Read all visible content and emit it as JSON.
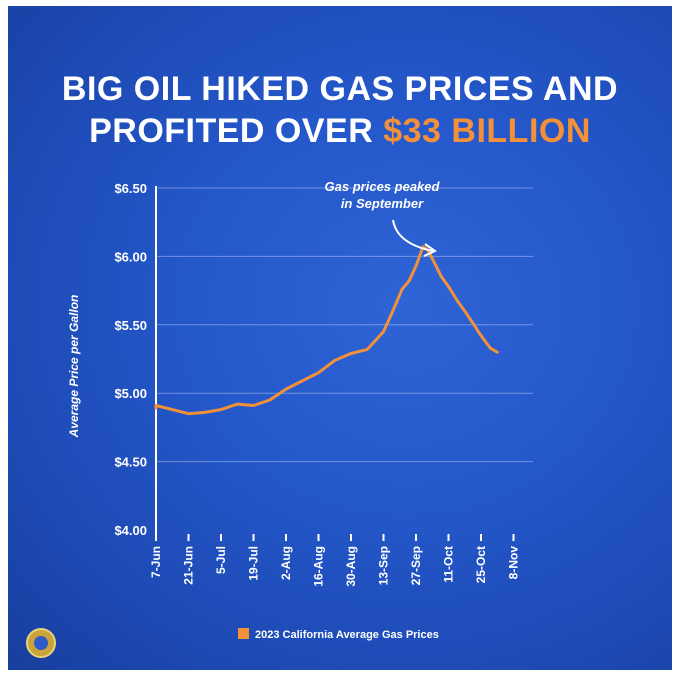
{
  "title": {
    "line1": "BIG OIL HIKED GAS PRICES AND",
    "line2_prefix": "PROFITED OVER ",
    "line2_accent": "$33 BILLION"
  },
  "colors": {
    "background": "#2457c9",
    "line": "#f2913a",
    "text": "#ffffff",
    "accent": "#f2913a"
  },
  "chart_data": {
    "type": "line",
    "title": "BIG OIL HIKED GAS PRICES AND PROFITED OVER $33 BILLION",
    "xlabel": "",
    "ylabel": "Average Price per Gallon",
    "ylim": [
      4.0,
      6.5
    ],
    "ytick_labels": [
      "$6.50",
      "$6.00",
      "$5.50",
      "$5.00",
      "$4.50",
      "$4.00"
    ],
    "yticks": [
      6.5,
      6.0,
      5.5,
      5.0,
      4.5,
      4.0
    ],
    "xtick_labels": [
      "7-Jun",
      "21-Jun",
      "5-Jul",
      "19-Jul",
      "2-Aug",
      "16-Aug",
      "30-Aug",
      "13-Sep",
      "27-Sep",
      "11-Oct",
      "25-Oct",
      "8-Nov"
    ],
    "grid": true,
    "legend_position": "bottom-center",
    "series": [
      {
        "name": "2023 California Average Gas Prices",
        "x": [
          "2023-06-01",
          "2023-06-07",
          "2023-06-14",
          "2023-06-21",
          "2023-06-28",
          "2023-07-05",
          "2023-07-12",
          "2023-07-19",
          "2023-07-26",
          "2023-08-02",
          "2023-08-09",
          "2023-08-16",
          "2023-08-23",
          "2023-08-30",
          "2023-09-06",
          "2023-09-13",
          "2023-09-17",
          "2023-09-21",
          "2023-09-24",
          "2023-09-27",
          "2023-09-30",
          "2023-10-02",
          "2023-10-05",
          "2023-10-08",
          "2023-10-11",
          "2023-10-15",
          "2023-10-18",
          "2023-10-22",
          "2023-10-25",
          "2023-10-29",
          "2023-11-01"
        ],
        "values": [
          4.89,
          4.91,
          4.88,
          4.85,
          4.86,
          4.88,
          4.92,
          4.91,
          4.95,
          5.03,
          5.09,
          5.15,
          5.24,
          5.29,
          5.32,
          5.45,
          5.6,
          5.76,
          5.82,
          5.93,
          6.07,
          6.05,
          5.95,
          5.85,
          5.78,
          5.67,
          5.6,
          5.5,
          5.42,
          5.33,
          5.3
        ]
      }
    ],
    "annotations": [
      {
        "text_line1": "Gas prices peaked",
        "text_line2": "in September",
        "x": "2023-10-01",
        "y": 6.06
      }
    ]
  }
}
